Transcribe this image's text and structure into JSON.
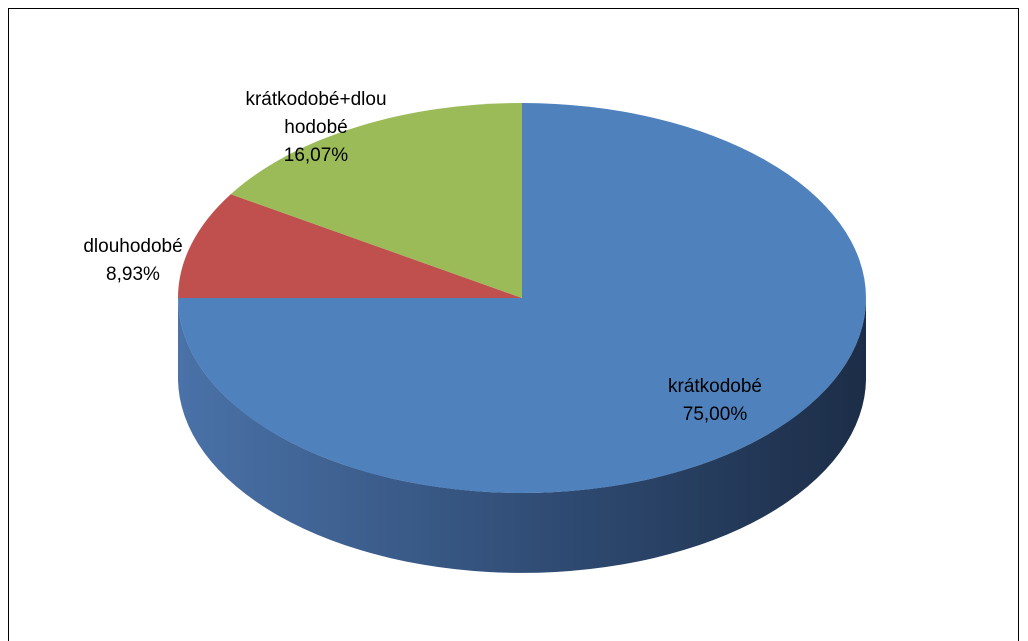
{
  "chart_data": {
    "type": "pie3d",
    "categories": [
      "krátkodobé",
      "dlouhodobé",
      "krátkodobé+dlouhodobé"
    ],
    "values": [
      75,
      8.93,
      16.07
    ],
    "value_labels": [
      "75,00%",
      "8,93%",
      "16,07%"
    ],
    "colors": [
      "#4f81bd",
      "#c0504d",
      "#9bbb59"
    ]
  }
}
